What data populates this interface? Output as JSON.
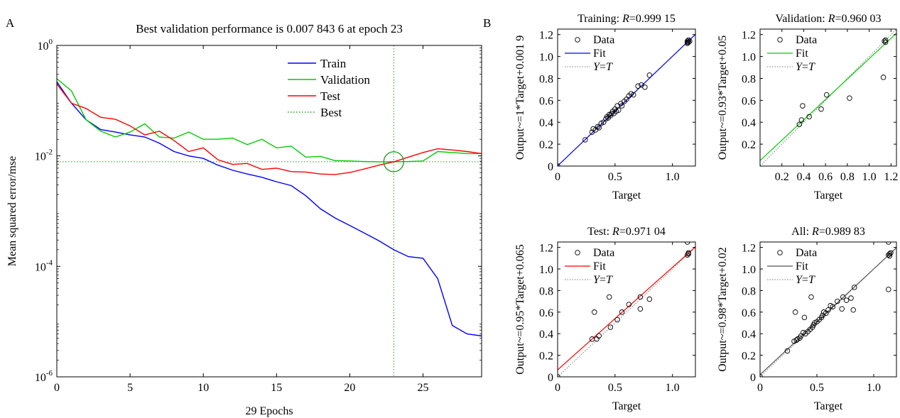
{
  "panels": {
    "a_label": "A",
    "b_label": "B"
  },
  "chart_data": [
    {
      "type": "line",
      "panel": "A",
      "title": "Best validation performance is 0.007 843 6 at epoch 23",
      "xlabel": "29 Epochs",
      "ylabel": "Mean squared error/mse",
      "xlim": [
        0,
        29
      ],
      "ylim": [
        1e-06,
        1
      ],
      "yscale": "log",
      "xticks": [
        0,
        5,
        10,
        15,
        20,
        25
      ],
      "yticks": [
        {
          "value": 1,
          "base": "10",
          "exp": "0"
        },
        {
          "value": 0.01,
          "base": "10",
          "exp": "-2"
        },
        {
          "value": 0.0001,
          "base": "10",
          "exp": "-4"
        },
        {
          "value": 1e-06,
          "base": "10",
          "exp": "-6"
        }
      ],
      "legend_position": "top-right",
      "best": {
        "epoch": 23,
        "value": 0.0078436,
        "label": "Best",
        "color": "#1a9a1a"
      },
      "series": [
        {
          "name": "Train",
          "color": "#0000ff",
          "values": [
            0.22,
            0.09,
            0.045,
            0.03,
            0.027,
            0.024,
            0.022,
            0.017,
            0.012,
            0.01,
            0.009,
            0.0068,
            0.0055,
            0.0047,
            0.0041,
            0.0034,
            0.0029,
            0.0019,
            0.0011,
            0.00075,
            0.00055,
            0.0004,
            0.00029,
            0.0002,
            0.00015,
            0.00014,
            6e-05,
            8.5e-06,
            6e-06,
            5.5e-06
          ]
        },
        {
          "name": "Validation",
          "color": "#00cc00",
          "values": [
            0.25,
            0.15,
            0.045,
            0.028,
            0.022,
            0.027,
            0.038,
            0.022,
            0.021,
            0.027,
            0.02,
            0.02,
            0.021,
            0.016,
            0.02,
            0.014,
            0.015,
            0.0095,
            0.0098,
            0.0082,
            0.0081,
            0.0079,
            0.0078,
            0.0078436,
            0.0079,
            0.0081,
            0.012,
            0.0115,
            0.011,
            0.011
          ]
        },
        {
          "name": "Test",
          "color": "#ff0000",
          "values": [
            0.2,
            0.09,
            0.072,
            0.05,
            0.046,
            0.035,
            0.024,
            0.028,
            0.019,
            0.012,
            0.014,
            0.0085,
            0.007,
            0.0073,
            0.0057,
            0.006,
            0.0052,
            0.0051,
            0.0047,
            0.0046,
            0.005,
            0.0058,
            0.0068,
            0.0078,
            0.0095,
            0.0115,
            0.0135,
            0.0128,
            0.012,
            0.011
          ]
        }
      ]
    },
    {
      "type": "scatter",
      "panel": "B",
      "title_prefix": "Training: ",
      "r_symbol": "R",
      "r_value": "=0.999 15",
      "xlabel": "Target",
      "ylabel": "Output~=1*Target+0.001 9",
      "xlim": [
        0,
        1.2
      ],
      "ylim": [
        0,
        1.25
      ],
      "xticks": [
        "0",
        "0.5",
        "1.0"
      ],
      "xtick_values": [
        0,
        0.5,
        1.0
      ],
      "yticks": [
        "0",
        "0.2",
        "0.4",
        "0.6",
        "0.8",
        "1.0",
        "1.2"
      ],
      "ytick_values": [
        0,
        0.2,
        0.4,
        0.6,
        0.8,
        1.0,
        1.2
      ],
      "fit": {
        "slope": 1.0,
        "intercept": 0.0019,
        "color": "#0000ff"
      },
      "legend": {
        "data": "Data",
        "fit": "Fit",
        "yt_y": "Y",
        "yt_eq": "=",
        "yt_t": "T"
      },
      "points": [
        [
          0,
          0
        ],
        [
          0.24,
          0.24
        ],
        [
          0.3,
          0.31
        ],
        [
          0.31,
          0.34
        ],
        [
          0.33,
          0.33
        ],
        [
          0.35,
          0.36
        ],
        [
          0.36,
          0.35
        ],
        [
          0.38,
          0.39
        ],
        [
          0.4,
          0.4
        ],
        [
          0.42,
          0.43
        ],
        [
          0.43,
          0.45
        ],
        [
          0.44,
          0.44
        ],
        [
          0.45,
          0.47
        ],
        [
          0.46,
          0.46
        ],
        [
          0.47,
          0.48
        ],
        [
          0.48,
          0.5
        ],
        [
          0.49,
          0.48
        ],
        [
          0.5,
          0.52
        ],
        [
          0.51,
          0.5
        ],
        [
          0.52,
          0.55
        ],
        [
          0.53,
          0.51
        ],
        [
          0.55,
          0.57
        ],
        [
          0.56,
          0.55
        ],
        [
          0.58,
          0.59
        ],
        [
          0.6,
          0.61
        ],
        [
          0.62,
          0.64
        ],
        [
          0.64,
          0.66
        ],
        [
          0.66,
          0.65
        ],
        [
          0.7,
          0.73
        ],
        [
          0.73,
          0.74
        ],
        [
          0.76,
          0.72
        ],
        [
          0.8,
          0.83
        ],
        [
          1.13,
          1.13
        ],
        [
          1.13,
          1.14
        ],
        [
          1.14,
          1.15
        ],
        [
          1.14,
          1.13
        ],
        [
          1.15,
          1.14
        ],
        [
          1.13,
          1.12
        ]
      ]
    },
    {
      "type": "scatter",
      "panel": "B",
      "title_prefix": "Validation: ",
      "r_symbol": "R",
      "r_value": "=0.960 03",
      "xlabel": "Target",
      "ylabel": "Output~=0.93*Target+0.05",
      "xlim": [
        0,
        1.25
      ],
      "ylim": [
        0,
        1.25
      ],
      "xticks": [
        "0.2",
        "0.4",
        "0.6",
        "0.8",
        "1.0",
        "1.2"
      ],
      "xtick_values": [
        0.2,
        0.4,
        0.6,
        0.8,
        1.0,
        1.2
      ],
      "yticks": [
        "0.2",
        "0.4",
        "0.6",
        "0.8",
        "1.0",
        "1.2"
      ],
      "ytick_values": [
        0.2,
        0.4,
        0.6,
        0.8,
        1.0,
        1.2
      ],
      "fit": {
        "slope": 0.93,
        "intercept": 0.05,
        "color": "#00cc00"
      },
      "legend": {
        "data": "Data",
        "fit": "Fit",
        "yt_y": "Y",
        "yt_eq": "=",
        "yt_t": "T"
      },
      "points": [
        [
          0.36,
          0.38
        ],
        [
          0.38,
          0.42
        ],
        [
          0.39,
          0.55
        ],
        [
          0.45,
          0.45
        ],
        [
          0.56,
          0.52
        ],
        [
          0.61,
          0.65
        ],
        [
          0.82,
          0.62
        ],
        [
          1.13,
          0.81
        ],
        [
          1.15,
          1.13
        ],
        [
          1.15,
          1.15
        ],
        [
          1.14,
          1.14
        ]
      ]
    },
    {
      "type": "scatter",
      "panel": "B",
      "title_prefix": "Test: ",
      "r_symbol": "R",
      "r_value": "=0.971 04",
      "xlabel": "Target",
      "ylabel": "Output~=0.95*Target+0.065",
      "xlim": [
        0,
        1.2
      ],
      "ylim": [
        0,
        1.25
      ],
      "xticks": [
        "0",
        "0.5",
        "1.0"
      ],
      "xtick_values": [
        0,
        0.5,
        1.0
      ],
      "yticks": [
        "0",
        "0.2",
        "0.4",
        "0.6",
        "0.8",
        "1.0",
        "1.2"
      ],
      "ytick_values": [
        0,
        0.2,
        0.4,
        0.6,
        0.8,
        1.0,
        1.2
      ],
      "fit": {
        "slope": 0.95,
        "intercept": 0.065,
        "color": "#ff0000"
      },
      "legend": {
        "data": "Data",
        "fit": "Fit",
        "yt_y": "Y",
        "yt_eq": "=",
        "yt_t": "T"
      },
      "points": [
        [
          0,
          0
        ],
        [
          0.3,
          0.35
        ],
        [
          0.32,
          0.6
        ],
        [
          0.34,
          0.35
        ],
        [
          0.36,
          0.38
        ],
        [
          0.45,
          0.74
        ],
        [
          0.46,
          0.46
        ],
        [
          0.52,
          0.53
        ],
        [
          0.56,
          0.6
        ],
        [
          0.62,
          0.67
        ],
        [
          0.72,
          0.63
        ],
        [
          0.72,
          0.74
        ],
        [
          0.8,
          0.72
        ],
        [
          1.13,
          1.25
        ],
        [
          1.14,
          1.14
        ],
        [
          1.14,
          1.15
        ],
        [
          1.13,
          1.13
        ]
      ]
    },
    {
      "type": "scatter",
      "panel": "B",
      "title_prefix": "All: ",
      "r_symbol": "R",
      "r_value": "=0.989 83",
      "xlabel": "Target",
      "ylabel": "Output~=0.98*Target+0.02",
      "xlim": [
        0,
        1.2
      ],
      "ylim": [
        0,
        1.25
      ],
      "xticks": [
        "0",
        "0.5",
        "1.0"
      ],
      "xtick_values": [
        0,
        0.5,
        1.0
      ],
      "yticks": [
        "0",
        "0.2",
        "0.4",
        "0.6",
        "0.8",
        "1.0",
        "1.2"
      ],
      "ytick_values": [
        0,
        0.2,
        0.4,
        0.6,
        0.8,
        1.0,
        1.2
      ],
      "fit": {
        "slope": 0.98,
        "intercept": 0.02,
        "color": "#555555"
      },
      "legend": {
        "data": "Data",
        "fit": "Fit",
        "yt_y": "Y",
        "yt_eq": "=",
        "yt_t": "T"
      },
      "points": [
        [
          0,
          0
        ],
        [
          0.24,
          0.24
        ],
        [
          0.3,
          0.33
        ],
        [
          0.31,
          0.6
        ],
        [
          0.32,
          0.34
        ],
        [
          0.33,
          0.35
        ],
        [
          0.35,
          0.36
        ],
        [
          0.36,
          0.38
        ],
        [
          0.38,
          0.41
        ],
        [
          0.39,
          0.55
        ],
        [
          0.4,
          0.4
        ],
        [
          0.42,
          0.42
        ],
        [
          0.44,
          0.44
        ],
        [
          0.45,
          0.74
        ],
        [
          0.46,
          0.46
        ],
        [
          0.47,
          0.48
        ],
        [
          0.48,
          0.5
        ],
        [
          0.5,
          0.51
        ],
        [
          0.52,
          0.53
        ],
        [
          0.54,
          0.55
        ],
        [
          0.55,
          0.57
        ],
        [
          0.56,
          0.6
        ],
        [
          0.58,
          0.59
        ],
        [
          0.6,
          0.62
        ],
        [
          0.62,
          0.66
        ],
        [
          0.64,
          0.65
        ],
        [
          0.68,
          0.7
        ],
        [
          0.72,
          0.63
        ],
        [
          0.73,
          0.74
        ],
        [
          0.76,
          0.71
        ],
        [
          0.8,
          0.73
        ],
        [
          0.82,
          0.62
        ],
        [
          0.83,
          0.83
        ],
        [
          1.13,
          0.81
        ],
        [
          1.13,
          1.13
        ],
        [
          1.14,
          1.14
        ],
        [
          1.15,
          1.15
        ],
        [
          1.13,
          1.25
        ],
        [
          1.14,
          1.12
        ]
      ]
    }
  ]
}
